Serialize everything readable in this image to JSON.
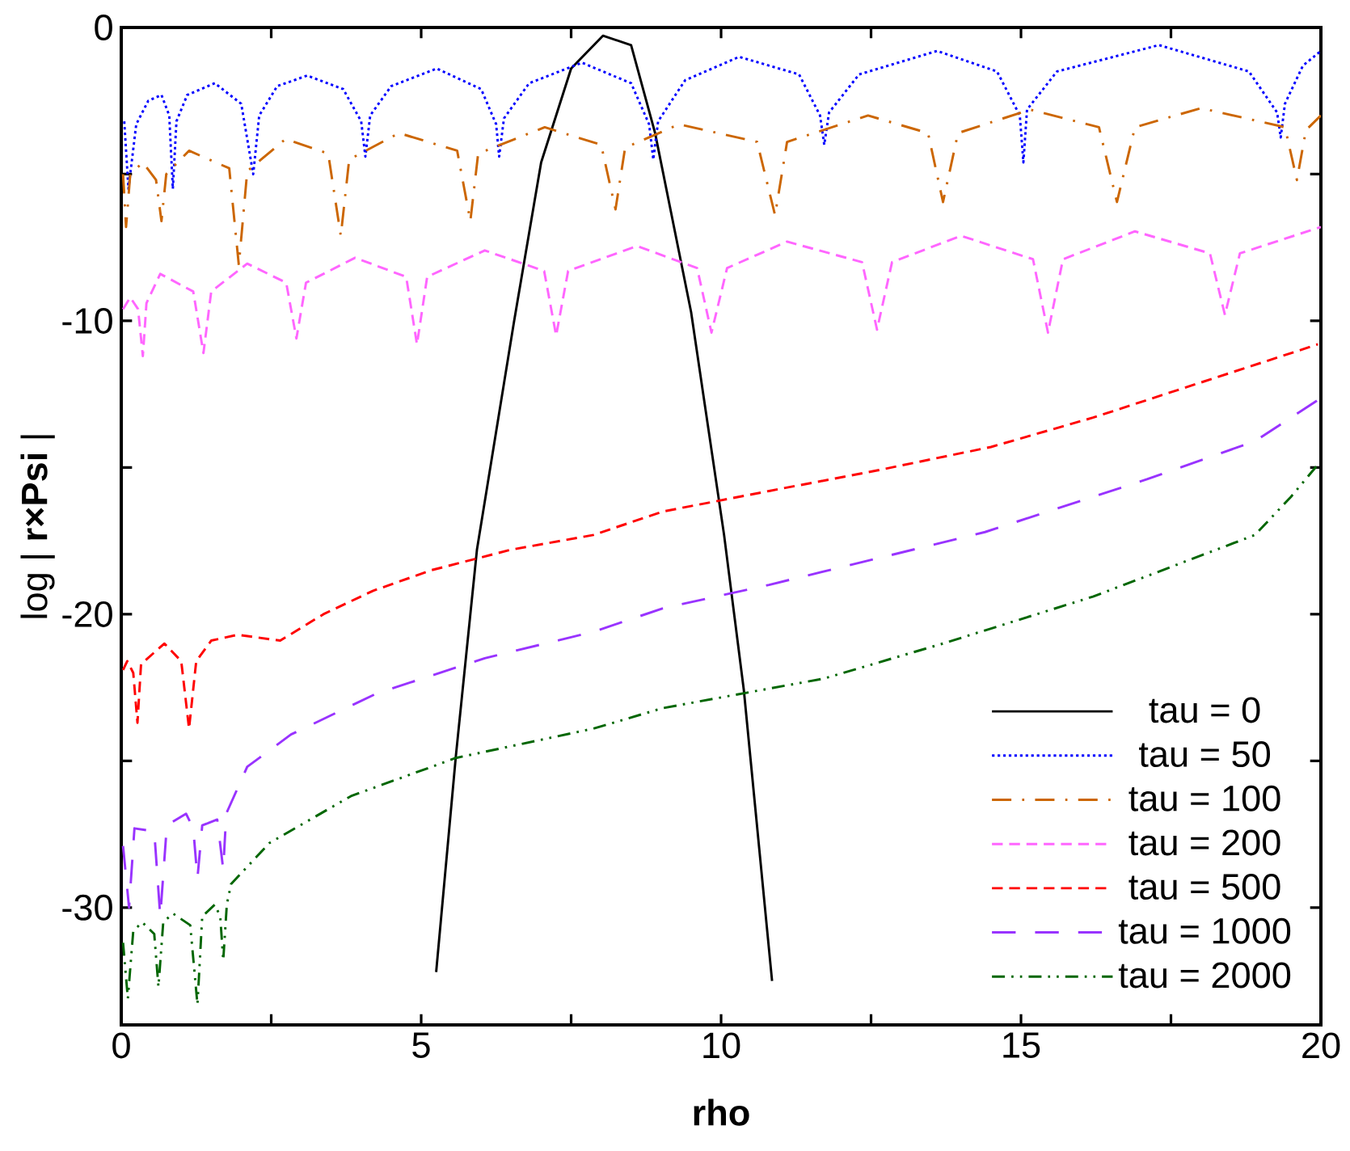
{
  "chart_data": {
    "type": "line",
    "xlabel": "rho",
    "ylabel": "log | **r×Psi** |",
    "xlim": [
      0,
      20
    ],
    "ylim": [
      -34,
      0
    ],
    "xticks": [
      0,
      {
        "value": 2.5,
        "label": null
      },
      5,
      {
        "value": 7.5,
        "label": null
      },
      10,
      {
        "value": 12.5,
        "label": null
      },
      15,
      {
        "value": 17.5,
        "label": null
      },
      20
    ],
    "yticks": [
      -30,
      {
        "value": -25,
        "label": null
      },
      -20,
      {
        "value": -15,
        "label": null
      },
      -10,
      {
        "value": -5,
        "label": null
      },
      0
    ],
    "legend": "bottom right",
    "marker": "none",
    "series": [
      {
        "name": "tau = 0",
        "color": "#000000",
        "line_style": "solid",
        "x": [
          5.25,
          5.58,
          5.93,
          6.55,
          7.0,
          7.5,
          8.03,
          8.5,
          8.9,
          9.5,
          10.05,
          10.38,
          10.85
        ],
        "values": [
          -32.2,
          -24.8,
          -17.8,
          -10,
          -4.6,
          -1.4,
          -0.28,
          -0.6,
          -3.6,
          -9.7,
          -17.3,
          -22.6,
          -32.5
        ]
      },
      {
        "name": "tau = 50",
        "color": "#0000ff",
        "line_style": "dotted",
        "x": [
          0.05,
          0.12,
          0.25,
          0.45,
          0.67,
          0.8,
          0.86,
          0.92,
          1.1,
          1.56,
          2.0,
          2.2,
          2.3,
          2.6,
          3.1,
          3.7,
          4.0,
          4.07,
          4.15,
          4.5,
          5.26,
          6.0,
          6.25,
          6.3,
          6.38,
          6.8,
          7.68,
          8.5,
          8.8,
          8.87,
          8.95,
          9.4,
          10.3,
          11.3,
          11.65,
          11.72,
          11.8,
          12.3,
          13.6,
          14.6,
          14.98,
          15.04,
          15.1,
          15.6,
          17.3,
          18.8,
          19.27,
          19.33,
          19.4,
          19.7,
          20
        ],
        "values": [
          -3.2,
          -5.5,
          -3.3,
          -2.5,
          -2.3,
          -3.0,
          -5.5,
          -3.2,
          -2.3,
          -1.9,
          -2.6,
          -5.0,
          -3.0,
          -2.0,
          -1.64,
          -2.1,
          -3.2,
          -4.4,
          -3.0,
          -2.0,
          -1.4,
          -2.1,
          -3.3,
          -4.4,
          -3.1,
          -1.9,
          -1.2,
          -1.9,
          -3.3,
          -4.5,
          -3.2,
          -1.8,
          -1.0,
          -1.6,
          -3.0,
          -4.0,
          -2.9,
          -1.6,
          -0.8,
          -1.5,
          -3.0,
          -4.6,
          -2.8,
          -1.5,
          -0.6,
          -1.5,
          -2.9,
          -3.75,
          -2.6,
          -1.3,
          -0.8
        ]
      },
      {
        "name": "tau = 100",
        "color": "#cc6600",
        "line_style": "dashdot",
        "x": [
          0.03,
          0.08,
          0.15,
          0.36,
          0.58,
          0.67,
          0.75,
          1.13,
          1.8,
          1.96,
          2.1,
          2.74,
          3.45,
          3.66,
          3.8,
          4.63,
          5.6,
          5.82,
          5.95,
          7.06,
          8.0,
          8.24,
          8.4,
          9.3,
          10.6,
          10.9,
          11.1,
          12.45,
          13.45,
          13.7,
          13.95,
          15.15,
          16.3,
          16.6,
          16.9,
          18.0,
          19.4,
          19.6,
          19.75,
          20
        ],
        "values": [
          -5.0,
          -6.8,
          -5.0,
          -4.6,
          -5.2,
          -6.6,
          -5.0,
          -4.2,
          -4.8,
          -8.1,
          -4.9,
          -3.8,
          -4.3,
          -7.1,
          -4.5,
          -3.6,
          -4.2,
          -6.6,
          -4.3,
          -3.4,
          -4.0,
          -6.2,
          -4.1,
          -3.3,
          -3.9,
          -6.4,
          -3.9,
          -3.0,
          -3.6,
          -5.95,
          -3.6,
          -2.8,
          -3.4,
          -5.95,
          -3.4,
          -2.75,
          -3.4,
          -5.2,
          -3.5,
          -3.0
        ]
      },
      {
        "name": "tau = 200",
        "color": "#ff66ff",
        "line_style": "dashed",
        "x": [
          0.03,
          0.15,
          0.28,
          0.36,
          0.42,
          0.65,
          1.2,
          1.37,
          1.5,
          2.1,
          2.75,
          2.92,
          3.08,
          3.9,
          4.75,
          4.93,
          5.1,
          6.06,
          7.05,
          7.25,
          7.45,
          8.6,
          9.6,
          9.84,
          10.1,
          11.1,
          12.35,
          12.6,
          12.85,
          14.0,
          15.2,
          15.45,
          15.7,
          16.9,
          18.15,
          18.4,
          18.65,
          20
        ],
        "values": [
          -9.6,
          -9.2,
          -9.6,
          -11.2,
          -9.4,
          -8.4,
          -9.0,
          -11.1,
          -9.0,
          -8.05,
          -8.7,
          -10.6,
          -8.7,
          -7.85,
          -8.5,
          -10.8,
          -8.5,
          -7.6,
          -8.3,
          -10.5,
          -8.3,
          -7.45,
          -8.2,
          -10.4,
          -8.2,
          -7.3,
          -8.0,
          -10.3,
          -8.0,
          -7.1,
          -7.9,
          -10.4,
          -7.9,
          -6.95,
          -7.7,
          -9.8,
          -7.7,
          -6.8
        ]
      },
      {
        "name": "tau = 500",
        "color": "#ff0000",
        "line_style": "dashed",
        "x": [
          0.03,
          0.1,
          0.2,
          0.27,
          0.33,
          0.72,
          1.0,
          1.13,
          1.25,
          1.5,
          1.94,
          2.65,
          3.37,
          4.2,
          5.17,
          6.5,
          7.87,
          9.03,
          10.8,
          12.6,
          14.5,
          16.2,
          18.0,
          19.95
        ],
        "values": [
          -21.9,
          -21.6,
          -22.0,
          -23.7,
          -21.7,
          -21.0,
          -21.6,
          -23.9,
          -21.6,
          -20.9,
          -20.7,
          -20.9,
          -20.0,
          -19.2,
          -18.5,
          -17.8,
          -17.3,
          -16.5,
          -15.8,
          -15.1,
          -14.3,
          -13.3,
          -12.1,
          -10.8
        ]
      },
      {
        "name": "tau = 1000",
        "color": "#9933ff",
        "line_style": "longdashed",
        "x": [
          0.03,
          0.13,
          0.22,
          0.55,
          0.65,
          0.76,
          1.08,
          1.2,
          1.27,
          1.35,
          1.6,
          1.7,
          1.75,
          2.1,
          2.83,
          4.26,
          6.06,
          7.87,
          9.03,
          10.8,
          12.6,
          14.4,
          17.1,
          18.9,
          19.95
        ],
        "values": [
          -27.9,
          -30.0,
          -27.3,
          -27.4,
          -30.3,
          -27.2,
          -26.8,
          -27.3,
          -29.0,
          -27.2,
          -27.0,
          -28.7,
          -26.8,
          -25.2,
          -24.1,
          -22.7,
          -21.5,
          -20.6,
          -19.8,
          -19.0,
          -18.1,
          -17.2,
          -15.4,
          -14.1,
          -12.7
        ]
      },
      {
        "name": "tau = 2000",
        "color": "#006600",
        "line_style": "dashdotdot",
        "x": [
          0.03,
          0.11,
          0.2,
          0.35,
          0.55,
          0.62,
          0.7,
          0.86,
          1.15,
          1.27,
          1.35,
          1.56,
          1.65,
          1.7,
          1.76,
          1.83,
          2.47,
          3.83,
          5.58,
          7.87,
          9.03,
          11.7,
          13.7,
          16.2,
          18.0,
          18.9,
          19.5,
          19.95
        ],
        "values": [
          -31.2,
          -33.1,
          -30.8,
          -30.5,
          -30.9,
          -32.7,
          -30.5,
          -30.2,
          -30.6,
          -33.3,
          -30.3,
          -29.9,
          -30.3,
          -31.8,
          -29.9,
          -29.2,
          -27.8,
          -26.2,
          -24.9,
          -23.9,
          -23.2,
          -22.2,
          -21.0,
          -19.4,
          -18.0,
          -17.3,
          -16.0,
          -14.9
        ]
      }
    ]
  }
}
